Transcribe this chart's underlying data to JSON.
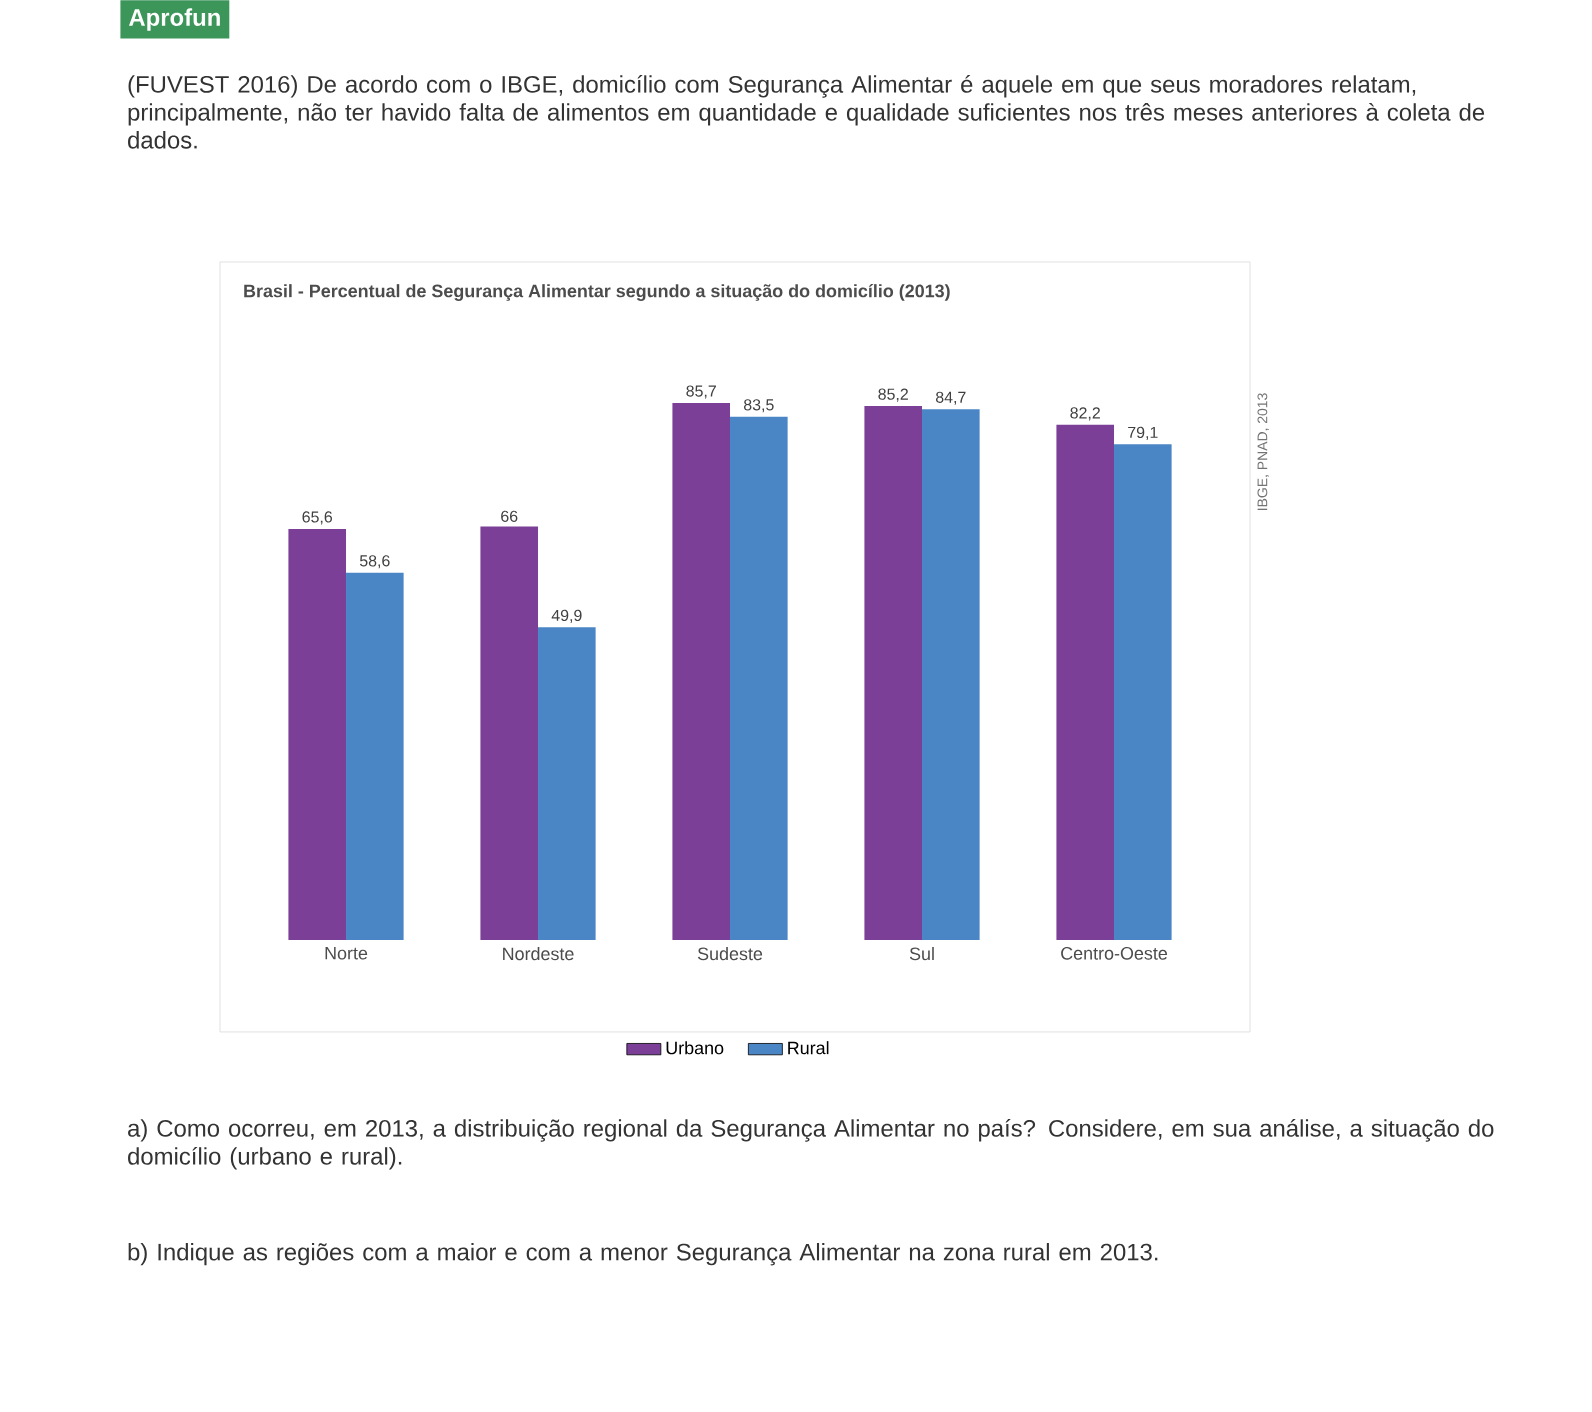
{
  "chart_data": {
    "type": "bar",
    "title": "Brasil - Percentual de Segurança Alimentar segundo a situação do domicílio (2013)",
    "categories": [
      "Norte",
      "Nordeste",
      "Sudeste",
      "Sul",
      "Centro-Oeste"
    ],
    "series": [
      {
        "name": "Urbano",
        "color": "#7b3f98",
        "values": [
          65.6,
          66,
          85.7,
          85.2,
          82.2
        ],
        "value_labels": [
          "65,6",
          "66",
          "85,7",
          "85,2",
          "82,2"
        ]
      },
      {
        "name": "Rural",
        "color": "#4a86c5",
        "values": [
          58.6,
          49.9,
          83.5,
          84.7,
          79.1
        ],
        "value_labels": [
          "58,6",
          "49,9",
          "83,5",
          "84,7",
          "79,1"
        ]
      }
    ],
    "legend": "bottom",
    "annotations": [
      "Aprofun",
      "(FUVEST 2016) De acordo com o IBGE, domicílio com Segurança Alimentar é aquele em que seus moradores relatam, principalmente, não ter havido falta de alimentos em quantidade e qualidade suficientes nos três meses anteriores à coleta de dados.",
      "IBGE, PNAD, 2013",
      "a) Como ocorreu, em 2013, a distribuição regional da Segurança Alimentar no país? Considere, em sua análise, a situação do domicílio (urbano e rural).",
      "b) Indique as regiões com a maior e com a menor Segurança Alimentar na zona rural em 2013."
    ]
  }
}
